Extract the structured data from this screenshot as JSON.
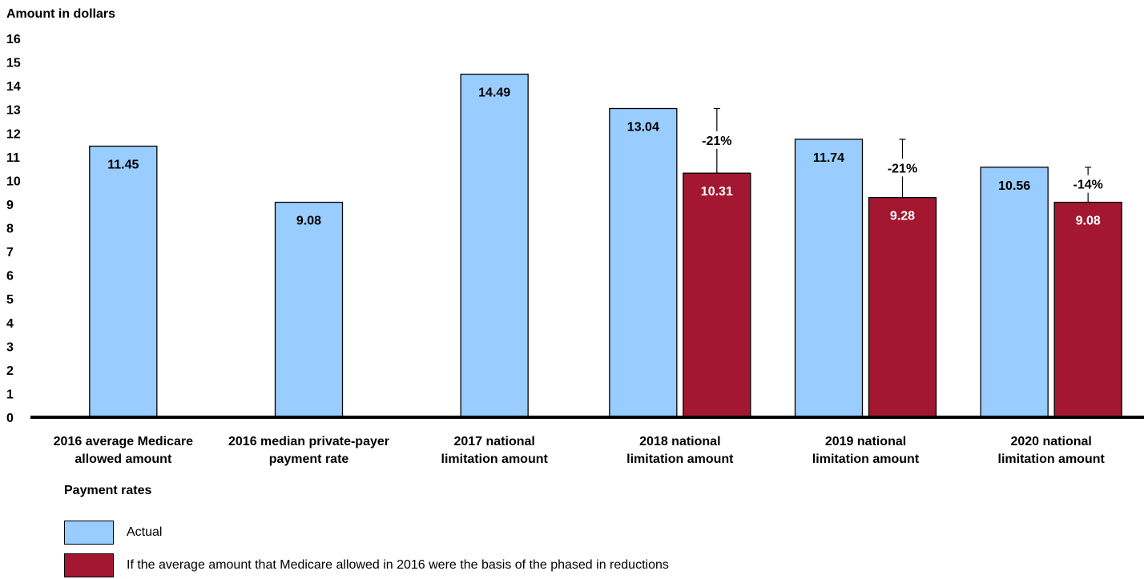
{
  "chart_data": {
    "type": "bar",
    "title": "",
    "ylabel": "Amount in dollars",
    "xlabel": "",
    "ylim": [
      0,
      16
    ],
    "yticks": [
      "0",
      "1",
      "2",
      "3",
      "4",
      "5",
      "6",
      "7",
      "8",
      "9",
      "10",
      "11",
      "12",
      "13",
      "14",
      "15",
      "16"
    ],
    "categories": [
      [
        "2016 average Medicare",
        "allowed amount"
      ],
      [
        "2016 median private-payer",
        "payment rate"
      ],
      [
        "2017 national",
        "limitation amount"
      ],
      [
        "2018 national",
        "limitation amount"
      ],
      [
        "2019 national",
        "limitation amount"
      ],
      [
        "2020 national",
        "limitation amount"
      ]
    ],
    "series": [
      {
        "name": "Actual",
        "color": "#99CCFF",
        "values": [
          11.45,
          9.08,
          14.49,
          13.04,
          11.74,
          10.56
        ],
        "labels": [
          "11.45",
          "9.08",
          "14.49",
          "13.04",
          "11.74",
          "10.56"
        ]
      },
      {
        "name": "If the average amount that Medicare allowed in 2016 were the basis of the phased in reductions",
        "color": "#A31830",
        "values": [
          null,
          null,
          null,
          10.31,
          9.28,
          9.08
        ],
        "labels": [
          "",
          "",
          "",
          "10.31",
          "9.28",
          "9.08"
        ]
      }
    ],
    "annotations": [
      {
        "category": 3,
        "text": "-21%",
        "from": 10.31,
        "to": 13.04
      },
      {
        "category": 4,
        "text": "-21%",
        "from": 9.28,
        "to": 11.74
      },
      {
        "category": 5,
        "text": "-14%",
        "from": 9.08,
        "to": 10.56
      }
    ],
    "grid": false,
    "legend_position": "bottom-left",
    "legend_title": "Payment rates"
  }
}
